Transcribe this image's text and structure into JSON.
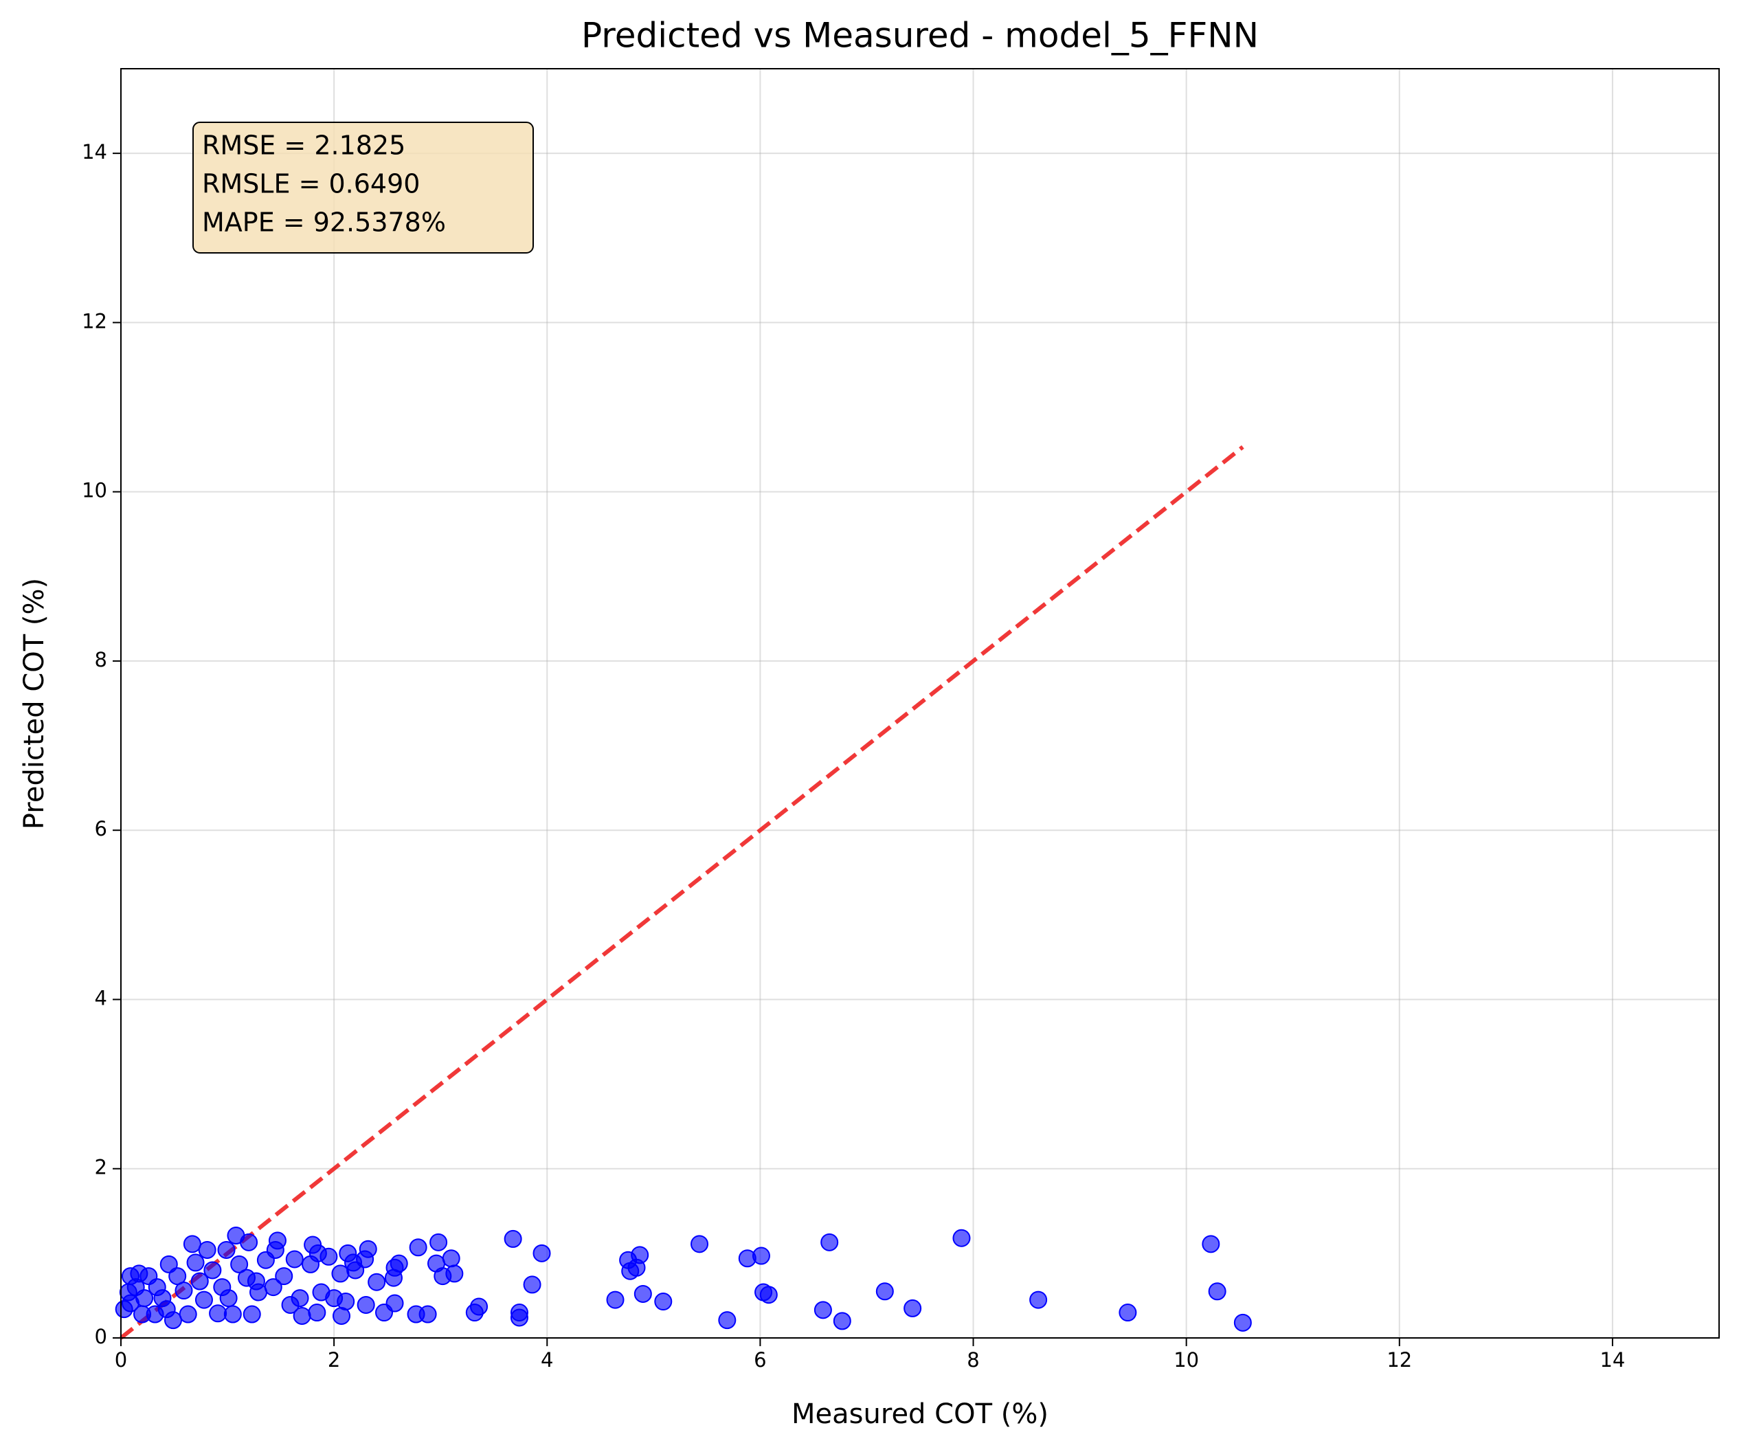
{
  "chart_data": {
    "type": "scatter",
    "title": "Predicted vs Measured - model_5_FFNN",
    "xlabel": "Measured COT (%)",
    "ylabel": "Predicted COT (%)",
    "xlim": [
      0,
      15
    ],
    "ylim": [
      0,
      15
    ],
    "xticks": [
      0,
      2,
      4,
      6,
      8,
      10,
      12,
      14
    ],
    "yticks": [
      0,
      2,
      4,
      6,
      8,
      10,
      12,
      14
    ],
    "grid": true,
    "annotation": [
      "RMSE = 2.1825",
      "RMSLE = 0.6490",
      "MAPE = 92.5378%"
    ],
    "reference_line": {
      "color": "#ee2222",
      "x": [
        0,
        10.53
      ],
      "y": [
        0,
        10.53
      ]
    },
    "series": [
      {
        "color": "#0000ff",
        "x": [
          3.68,
          3.95,
          3.86,
          3.74,
          3.74,
          3.32,
          3.36,
          4.64,
          4.76,
          4.87,
          4.84,
          4.78,
          4.9,
          5.09,
          5.43,
          5.69,
          5.88,
          6.01,
          6.03,
          6.08,
          6.59,
          6.65,
          6.77,
          7.17,
          7.43,
          7.89,
          8.61,
          9.45,
          10.23,
          10.29,
          10.53,
          2.98,
          3.1,
          3.13,
          3.02,
          2.96,
          2.88,
          2.77,
          2.79,
          2.61,
          2.57,
          2.56,
          2.57,
          2.47,
          2.4,
          2.32,
          2.29,
          2.3,
          2.2,
          2.18,
          2.13,
          2.07,
          2.06,
          2.11,
          1.95,
          1.85,
          1.8,
          1.78,
          1.88,
          1.84,
          1.7,
          1.68,
          1.63,
          1.53,
          1.47,
          1.45,
          1.43,
          1.36,
          1.29,
          1.27,
          1.23,
          1.2,
          1.08,
          1.11,
          1.05,
          0.99,
          0.95,
          0.91,
          0.81,
          0.78,
          0.7,
          0.67,
          0.63,
          0.59,
          0.53,
          0.49,
          0.45,
          0.39,
          0.34,
          0.32,
          0.26,
          0.22,
          0.17,
          0.14,
          0.09,
          0.07,
          0.09,
          0.03,
          0.2,
          0.43,
          0.74,
          0.86,
          1.01,
          1.18,
          1.59,
          2.0
        ],
        "y": [
          1.17,
          1.0,
          0.63,
          0.3,
          0.24,
          0.3,
          0.37,
          0.45,
          0.92,
          0.98,
          0.83,
          0.79,
          0.52,
          0.43,
          1.11,
          0.21,
          0.94,
          0.97,
          0.54,
          0.51,
          0.33,
          1.13,
          0.2,
          0.55,
          0.35,
          1.18,
          0.45,
          0.3,
          1.11,
          0.55,
          0.18,
          1.13,
          0.94,
          0.76,
          0.73,
          0.88,
          0.28,
          0.28,
          1.07,
          0.88,
          0.83,
          0.71,
          0.41,
          0.3,
          0.66,
          1.05,
          0.93,
          0.39,
          0.8,
          0.89,
          1.0,
          0.26,
          0.76,
          0.43,
          0.96,
          1.0,
          1.1,
          0.87,
          0.54,
          0.3,
          0.26,
          0.47,
          0.93,
          0.73,
          1.15,
          1.04,
          0.6,
          0.92,
          0.54,
          0.67,
          0.28,
          1.13,
          1.21,
          0.87,
          0.28,
          1.04,
          0.6,
          0.29,
          1.04,
          0.45,
          0.89,
          1.11,
          0.28,
          0.56,
          0.73,
          0.21,
          0.87,
          0.47,
          0.6,
          0.28,
          0.73,
          0.47,
          0.76,
          0.6,
          0.41,
          0.54,
          0.73,
          0.34,
          0.28,
          0.34,
          0.67,
          0.8,
          0.47,
          0.71,
          0.39,
          0.47
        ]
      }
    ]
  }
}
